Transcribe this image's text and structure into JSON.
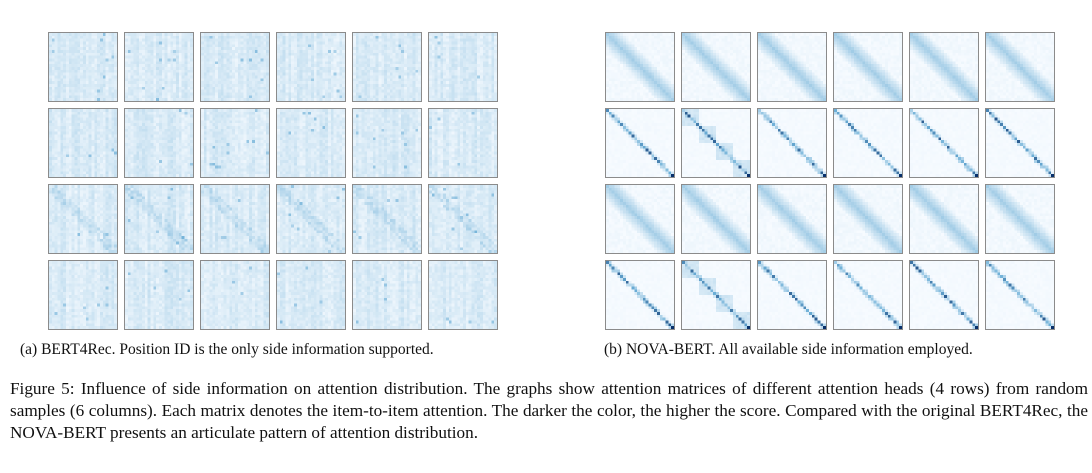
{
  "panels": [
    {
      "id": "a",
      "caption": "(a) BERT4Rec. Position ID is the only side information supported.",
      "rows": 4,
      "cols": 6,
      "pattern": "diffuse"
    },
    {
      "id": "b",
      "caption": "(b) NOVA-BERT. All available side information employed.",
      "rows": 4,
      "cols": 6,
      "pattern": "diagonal"
    }
  ],
  "figure_caption": "Figure 5: Influence of side information on attention distribution. The graphs show attention matrices of different attention heads (4 rows) from random samples (6 columns). Each matrix denotes the item-to-item attention. The darker the color, the higher the score. Compared with the original BERT4Rec, the NOVA-BERT presents an articulate pattern of attention distribution.",
  "colormap": {
    "low": "#f7fbff",
    "mid": "#6baed6",
    "high": "#08306b"
  }
}
